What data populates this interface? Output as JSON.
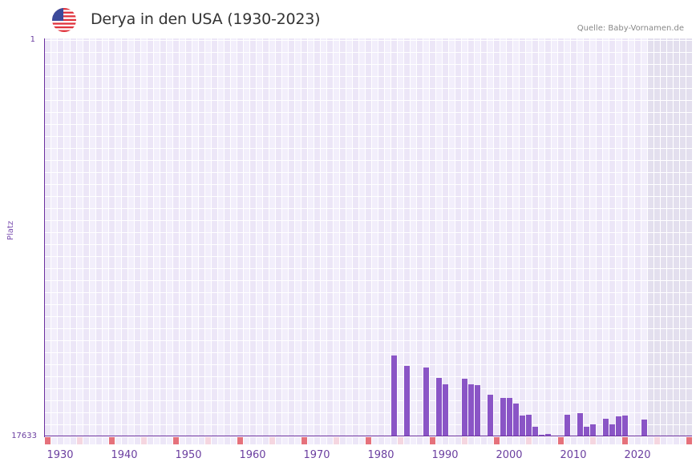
{
  "header": {
    "title": "Derya in den USA (1930-2023)",
    "source": "Quelle: Baby-Vornamen.de",
    "flag_icon": "us-flag-icon"
  },
  "axis": {
    "y_label": "Platz",
    "y_top_tick": "1",
    "y_bottom_tick": "17633",
    "x_ticks": [
      "1930",
      "1940",
      "1950",
      "1960",
      "1970",
      "1980",
      "1990",
      "2000",
      "2010",
      "2020"
    ]
  },
  "colors": {
    "bar": "#8a55c6",
    "axis": "#6b2fa0",
    "decade_marker": "#e5717b",
    "half_decade_marker": "#f5d6e0",
    "grid_cell_a": "#f2eefb",
    "grid_cell_b": "#ece6f7",
    "future_shade": "#e3dfee"
  },
  "chart_data": {
    "type": "bar",
    "title": "Derya in den USA (1930-2023)",
    "xlabel": "",
    "ylabel": "Platz",
    "y_inverted": true,
    "ylim": [
      17633,
      1
    ],
    "xlim": [
      1928,
      2028
    ],
    "grid": true,
    "legend": null,
    "annotation": "Quelle: Baby-Vornamen.de",
    "x": [
      1982,
      1984,
      1987,
      1989,
      1990,
      1993,
      1994,
      1995,
      1997,
      1999,
      2000,
      2001,
      2002,
      2003,
      2004,
      2005,
      2006,
      2009,
      2011,
      2012,
      2013,
      2015,
      2016,
      2017,
      2018,
      2021
    ],
    "values": [
      14035,
      14498,
      14570,
      15033,
      15318,
      15069,
      15318,
      15353,
      15781,
      15923,
      15923,
      16173,
      16707,
      16671,
      17206,
      17562,
      17526,
      16671,
      16600,
      17206,
      17099,
      16849,
      17099,
      16742,
      16707,
      16885
    ]
  }
}
